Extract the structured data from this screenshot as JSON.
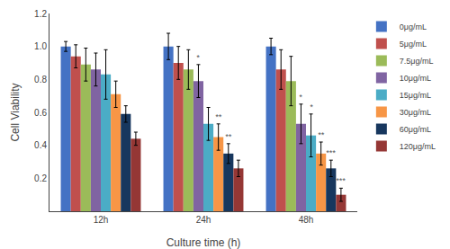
{
  "chart_data": {
    "type": "bar",
    "xlabel": "Culture time (h)",
    "ylabel": "Cell Viability",
    "categories": [
      "12h",
      "24h",
      "48h"
    ],
    "series": [
      {
        "name": "0μg/mL",
        "color": "#4472C4",
        "values": [
          1.0,
          1.0,
          1.0
        ],
        "errors": [
          0.03,
          0.08,
          0.05
        ],
        "annotations": [
          null,
          null,
          null
        ]
      },
      {
        "name": "5μg/mL",
        "color": "#C0504D",
        "values": [
          0.94,
          0.9,
          0.86
        ],
        "errors": [
          0.07,
          0.1,
          0.12
        ],
        "annotations": [
          null,
          null,
          null
        ]
      },
      {
        "name": "7.5μg/mL",
        "color": "#9BBB59",
        "values": [
          0.89,
          0.86,
          0.79
        ],
        "errors": [
          0.1,
          0.12,
          0.15
        ],
        "annotations": [
          null,
          null,
          null
        ]
      },
      {
        "name": "10μg/mL",
        "color": "#8064A2",
        "values": [
          0.86,
          0.79,
          0.53
        ],
        "errors": [
          0.1,
          0.1,
          0.12
        ],
        "annotations": [
          null,
          "*",
          "*"
        ]
      },
      {
        "name": "15μg/mL",
        "color": "#4BACC6",
        "values": [
          0.83,
          0.53,
          0.46
        ],
        "errors": [
          0.15,
          0.1,
          0.13
        ],
        "annotations": [
          null,
          null,
          "*"
        ]
      },
      {
        "name": "30μg/mL",
        "color": "#F79646",
        "values": [
          0.71,
          0.45,
          0.35
        ],
        "errors": [
          0.08,
          0.08,
          0.07
        ],
        "annotations": [
          null,
          "**",
          "**"
        ]
      },
      {
        "name": "60μg/mL",
        "color": "#17375E",
        "values": [
          0.59,
          0.35,
          0.26
        ],
        "errors": [
          0.05,
          0.06,
          0.05
        ],
        "annotations": [
          null,
          "**",
          "***"
        ]
      },
      {
        "name": "120μg/mL",
        "color": "#953735",
        "values": [
          0.44,
          0.26,
          0.1
        ],
        "errors": [
          0.04,
          0.05,
          0.04
        ],
        "annotations": [
          null,
          null,
          "***"
        ]
      }
    ],
    "ylim": [
      0,
      1.2
    ],
    "yticks": [
      0.2,
      0.4,
      0.6,
      0.8,
      {
        "value": 1.0,
        "label": "1.0"
      },
      1.2
    ],
    "grid": false,
    "legend": "right"
  }
}
